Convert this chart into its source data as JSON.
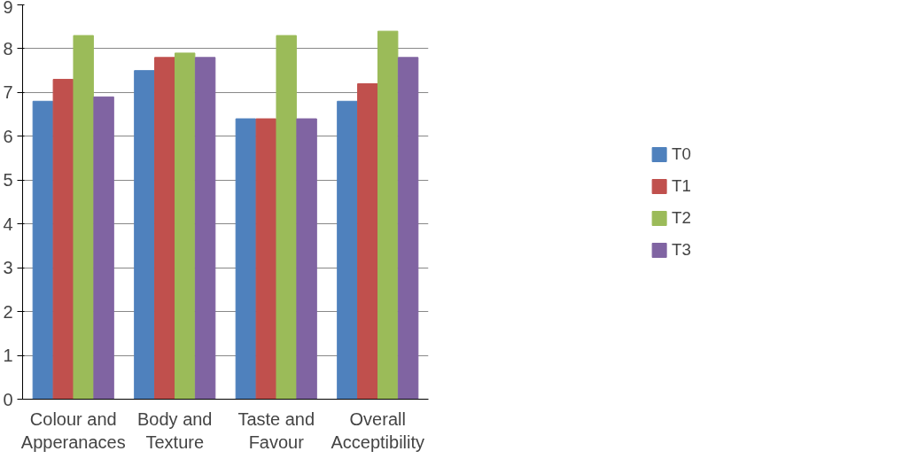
{
  "chart_data": {
    "type": "bar",
    "categories": [
      "Colour and Apperanaces",
      "Body and Texture",
      "Taste and Favour",
      "Overall Acceptibility"
    ],
    "series": [
      {
        "name": "T0",
        "color": "#4f81bd",
        "values": [
          6.8,
          7.5,
          6.4,
          6.8
        ]
      },
      {
        "name": "T1",
        "color": "#c0504d",
        "values": [
          7.3,
          7.8,
          6.4,
          7.2
        ]
      },
      {
        "name": "T2",
        "color": "#9bbb59",
        "values": [
          8.3,
          7.9,
          8.3,
          8.4
        ]
      },
      {
        "name": "T3",
        "color": "#8064a2",
        "values": [
          6.9,
          7.8,
          6.4,
          7.8
        ]
      }
    ],
    "ylim": [
      0,
      9
    ],
    "yticks": [
      0,
      1,
      2,
      3,
      4,
      5,
      6,
      7,
      8,
      9
    ],
    "grid": "y",
    "legend": "right"
  }
}
